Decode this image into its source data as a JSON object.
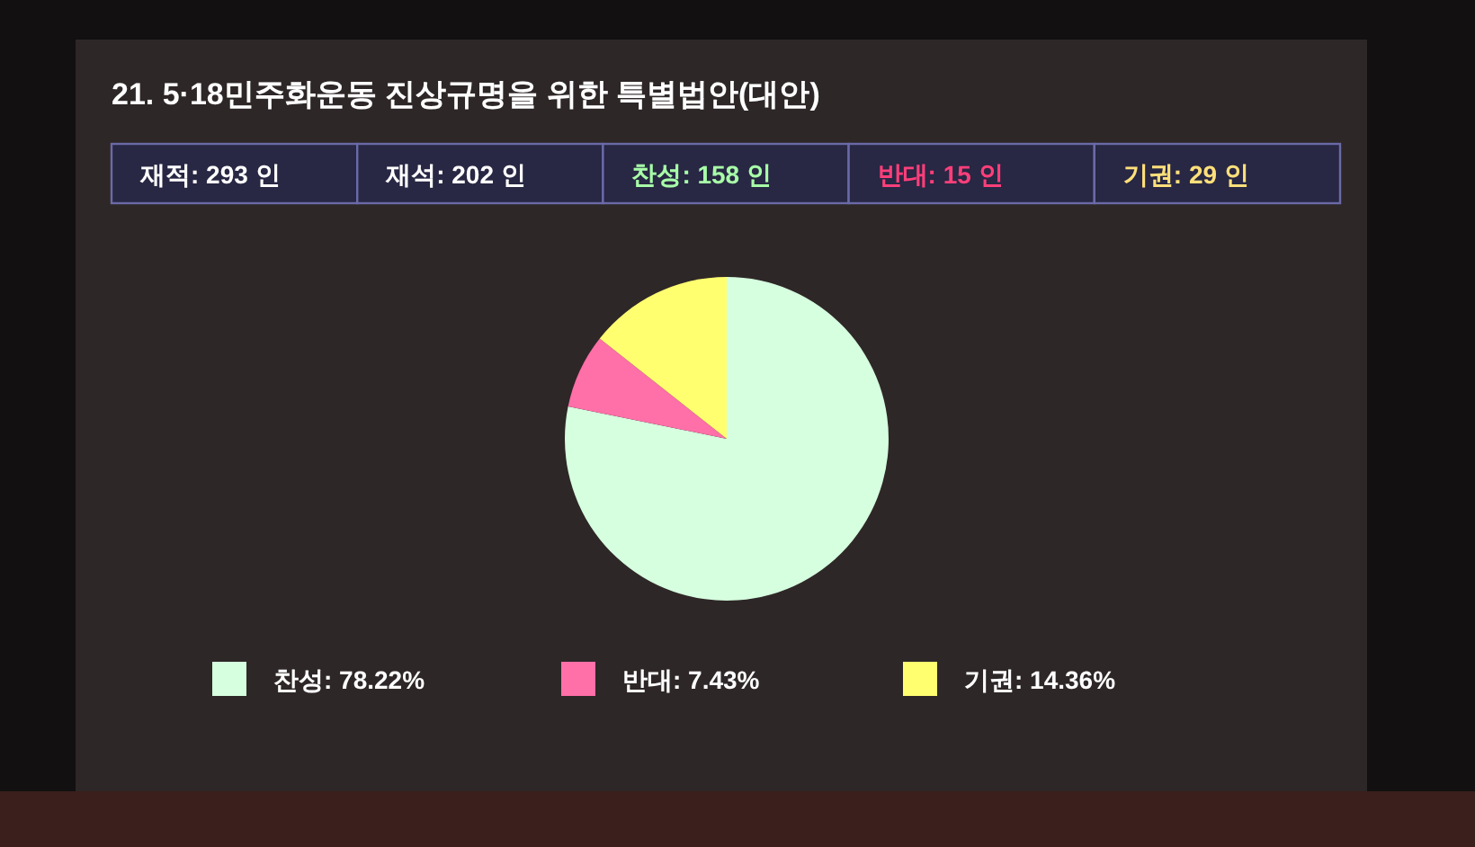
{
  "chart_data": {
    "type": "pie",
    "title": "21. 5·18민주화운동 진상규명을 위한 특별법안(대안)",
    "annotations": [
      "재적: 293 인",
      "재석: 202 인",
      "찬성: 158 인",
      "반대: 15 인",
      "기권: 29 인"
    ],
    "categories": [
      "찬성",
      "반대",
      "기권"
    ],
    "values": [
      78.22,
      7.43,
      14.36
    ],
    "value_labels": [
      "78.22%",
      "7.43%",
      "14.36%"
    ],
    "colors": [
      "#d6ffdf",
      "#ff6fa8",
      "#ffff70"
    ],
    "legend": "bottom"
  }
}
